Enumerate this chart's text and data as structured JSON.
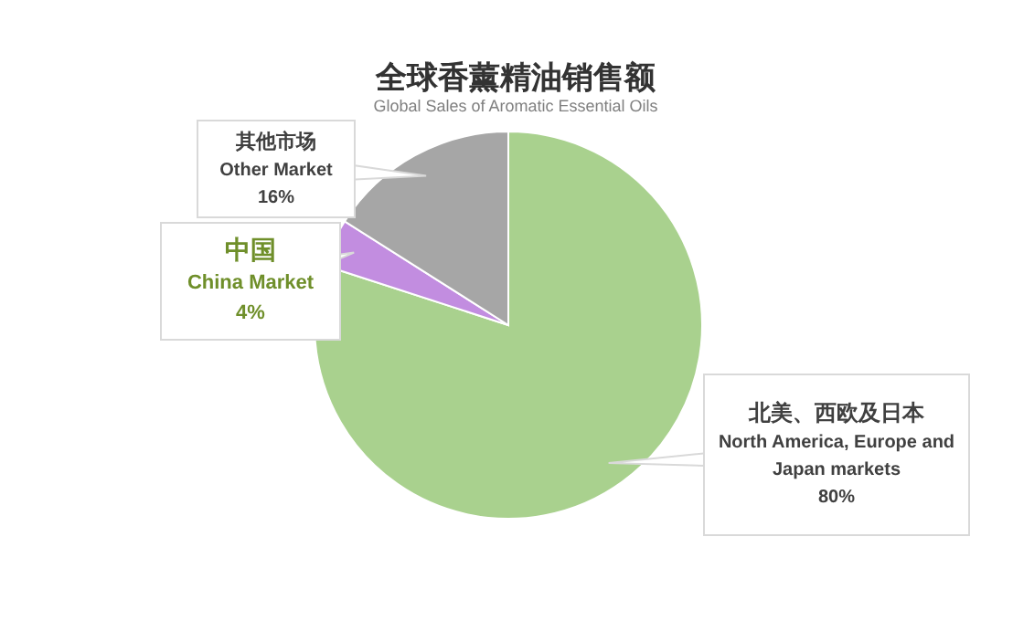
{
  "chart_data": {
    "type": "pie",
    "title": "全球香薰精油销售额",
    "subtitle": "Global Sales of Aromatic Essential Oils",
    "categories": [
      "北美、西欧及日本\nNorth America, Europe and\nJapan markets",
      "中国\nChina Market",
      "其他市场\nOther Market"
    ],
    "values": [
      80,
      4,
      16
    ],
    "colors": [
      "#a9d18e",
      "#c28de0",
      "#a6a6a6"
    ],
    "value_labels": [
      "80%",
      "4%",
      "16%"
    ]
  }
}
